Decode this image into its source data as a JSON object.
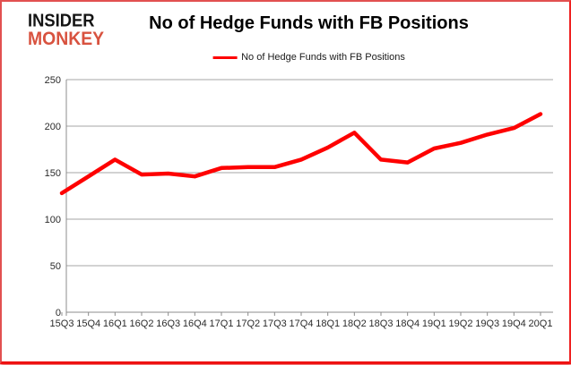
{
  "logo": {
    "line1": "INSIDER",
    "line2": "MONKEY"
  },
  "header": {
    "title": "No of Hedge Funds with FB Positions"
  },
  "legend": {
    "label": "No of Hedge Funds with FB Positions"
  },
  "colors": {
    "line": "#fe0000",
    "grid": "#a6a6a6",
    "axis": "#8c8c8c",
    "border": "#e25050",
    "logo_black": "#141414",
    "logo_red": "#d8523f",
    "text": "#000000"
  },
  "chart_data": {
    "type": "line",
    "categories": [
      "15Q3",
      "15Q4",
      "16Q1",
      "16Q2",
      "16Q3",
      "16Q4",
      "17Q1",
      "17Q2",
      "17Q3",
      "17Q4",
      "18Q1",
      "18Q2",
      "18Q3",
      "18Q4",
      "19Q1",
      "19Q2",
      "19Q3",
      "19Q4",
      "20Q1"
    ],
    "series": [
      {
        "name": "No of Hedge Funds with FB Positions",
        "color": "#fe0000",
        "values": [
          128,
          146,
          164,
          148,
          149,
          146,
          155,
          156,
          156,
          164,
          177,
          193,
          164,
          161,
          176,
          182,
          191,
          198,
          213
        ]
      }
    ],
    "title": "No of Hedge Funds with FB Positions",
    "xlabel": "",
    "ylabel": "",
    "ylim": [
      0,
      250
    ],
    "yticks": [
      0,
      50,
      100,
      150,
      200,
      250
    ],
    "grid": true,
    "legend_position": "top-center"
  }
}
